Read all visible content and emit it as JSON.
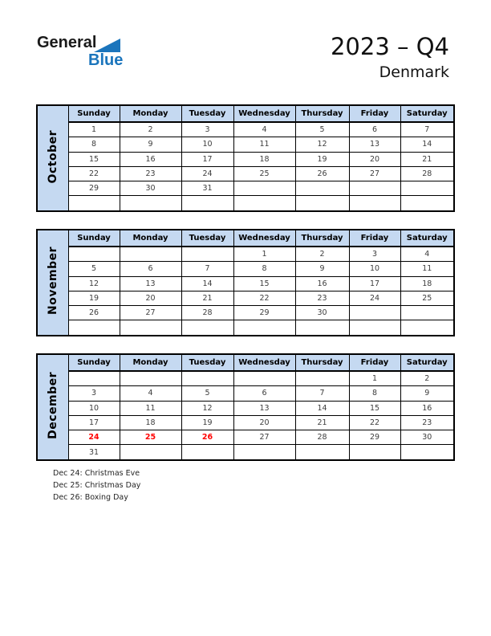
{
  "logo": {
    "general": "General",
    "blue": "Blue"
  },
  "header": {
    "title": "2023 – Q4",
    "subtitle": "Denmark"
  },
  "day_headers": [
    "Sunday",
    "Monday",
    "Tuesday",
    "Wednesday",
    "Thursday",
    "Friday",
    "Saturday"
  ],
  "months": [
    {
      "name": "October",
      "rows": [
        [
          "1",
          "2",
          "3",
          "4",
          "5",
          "6",
          "7"
        ],
        [
          "8",
          "9",
          "10",
          "11",
          "12",
          "13",
          "14"
        ],
        [
          "15",
          "16",
          "17",
          "18",
          "19",
          "20",
          "21"
        ],
        [
          "22",
          "23",
          "24",
          "25",
          "26",
          "27",
          "28"
        ],
        [
          "29",
          "30",
          "31",
          "",
          "",
          "",
          ""
        ],
        [
          "",
          "",
          "",
          "",
          "",
          "",
          ""
        ]
      ],
      "holidays": []
    },
    {
      "name": "November",
      "rows": [
        [
          "",
          "",
          "",
          "1",
          "2",
          "3",
          "4"
        ],
        [
          "5",
          "6",
          "7",
          "8",
          "9",
          "10",
          "11"
        ],
        [
          "12",
          "13",
          "14",
          "15",
          "16",
          "17",
          "18"
        ],
        [
          "19",
          "20",
          "21",
          "22",
          "23",
          "24",
          "25"
        ],
        [
          "26",
          "27",
          "28",
          "29",
          "30",
          "",
          ""
        ],
        [
          "",
          "",
          "",
          "",
          "",
          "",
          ""
        ]
      ],
      "holidays": []
    },
    {
      "name": "December",
      "rows": [
        [
          "",
          "",
          "",
          "",
          "",
          "1",
          "2"
        ],
        [
          "3",
          "4",
          "5",
          "6",
          "7",
          "8",
          "9"
        ],
        [
          "10",
          "11",
          "12",
          "13",
          "14",
          "15",
          "16"
        ],
        [
          "17",
          "18",
          "19",
          "20",
          "21",
          "22",
          "23"
        ],
        [
          "24",
          "25",
          "26",
          "27",
          "28",
          "29",
          "30"
        ],
        [
          "31",
          "",
          "",
          "",
          "",
          "",
          ""
        ]
      ],
      "holidays": [
        "24",
        "25",
        "26"
      ]
    }
  ],
  "notes": [
    "Dec 24: Christmas Eve",
    "Dec 25: Christmas Day",
    "Dec 26: Boxing Day"
  ],
  "colors": {
    "header_bg": "#c5d9f1",
    "logo_blue": "#1b75bc",
    "holiday_red": "#ff0000"
  }
}
